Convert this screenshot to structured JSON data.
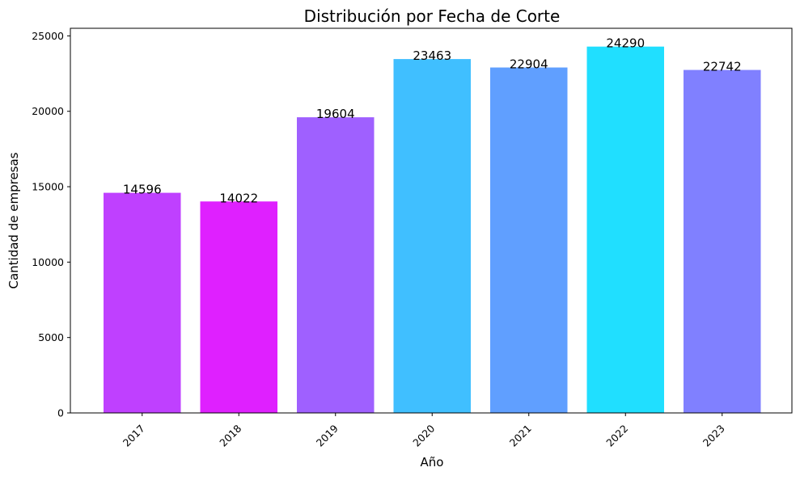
{
  "chart_data": {
    "type": "bar",
    "title": "Distribución por Fecha de Corte",
    "xlabel": "Año",
    "ylabel": "Cantidad de empresas",
    "categories": [
      "2017",
      "2018",
      "2019",
      "2020",
      "2021",
      "2022",
      "2023"
    ],
    "values": [
      14596,
      14022,
      19604,
      23463,
      22904,
      24290,
      22742
    ],
    "value_labels": [
      "14596",
      "14022",
      "19604",
      "23463",
      "22904",
      "24290",
      "22742"
    ],
    "colors": [
      "#bf40ff",
      "#df20ff",
      "#9f60ff",
      "#40bfff",
      "#609fff",
      "#20dfff",
      "#8080ff"
    ],
    "ylim": [
      0,
      25504
    ],
    "yticks": [
      0,
      5000,
      10000,
      15000,
      20000,
      25000
    ],
    "ytick_labels": [
      "0",
      "5000",
      "10000",
      "15000",
      "20000",
      "25000"
    ],
    "xtick_rotation": 45,
    "grid": false,
    "legend": "none"
  }
}
